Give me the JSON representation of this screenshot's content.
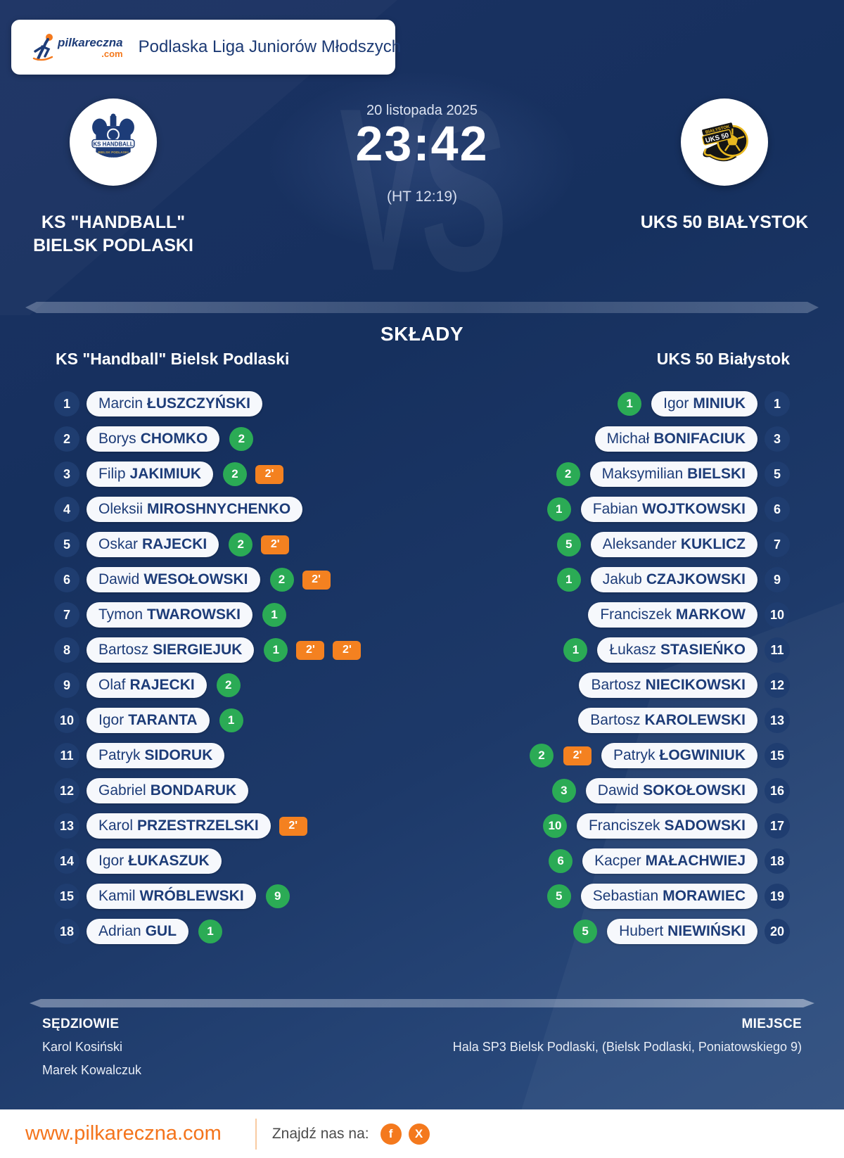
{
  "header": {
    "brand_name": "pilkareczna",
    "brand_tld": ".com",
    "league": "Podlaska Liga Juniorów Młodszych"
  },
  "match": {
    "date": "20 listopada 2025",
    "score": "23:42",
    "halftime": "(HT 12:19)",
    "vs_watermark": "VS"
  },
  "teams": {
    "home": {
      "name_line1": "KS \"HANDBALL\"",
      "name_line2": "BIELSK PODLASKI",
      "lineup_header": "KS \"Handball\" Bielsk Podlaski",
      "logo_text": "KS HANDBALL"
    },
    "away": {
      "name_line1": "UKS 50 BIAŁYSTOK",
      "lineup_header": "UKS 50 Białystok",
      "logo_text": "UKS 50"
    }
  },
  "lineups_title": "SKŁADY",
  "badges": {
    "suspension_label": "2'"
  },
  "players": {
    "home": [
      {
        "number": "1",
        "first": "Marcin",
        "last": "ŁUSZCZYŃSKI",
        "goals": null,
        "suspensions": 0
      },
      {
        "number": "2",
        "first": "Borys",
        "last": "CHOMKO",
        "goals": 2,
        "suspensions": 0
      },
      {
        "number": "3",
        "first": "Filip",
        "last": "JAKIMIUK",
        "goals": 2,
        "suspensions": 1
      },
      {
        "number": "4",
        "first": "Oleksii",
        "last": "MIROSHNYCHENKO",
        "goals": null,
        "suspensions": 0
      },
      {
        "number": "5",
        "first": "Oskar",
        "last": "RAJECKI",
        "goals": 2,
        "suspensions": 1
      },
      {
        "number": "6",
        "first": "Dawid",
        "last": "WESOŁOWSKI",
        "goals": 2,
        "suspensions": 1
      },
      {
        "number": "7",
        "first": "Tymon",
        "last": "TWAROWSKI",
        "goals": 1,
        "suspensions": 0
      },
      {
        "number": "8",
        "first": "Bartosz",
        "last": "SIERGIEJUK",
        "goals": 1,
        "suspensions": 2
      },
      {
        "number": "9",
        "first": "Olaf",
        "last": "RAJECKI",
        "goals": 2,
        "suspensions": 0
      },
      {
        "number": "10",
        "first": "Igor",
        "last": "TARANTA",
        "goals": 1,
        "suspensions": 0
      },
      {
        "number": "11",
        "first": "Patryk",
        "last": "SIDORUK",
        "goals": null,
        "suspensions": 0
      },
      {
        "number": "12",
        "first": "Gabriel",
        "last": "BONDARUK",
        "goals": null,
        "suspensions": 0
      },
      {
        "number": "13",
        "first": "Karol",
        "last": "PRZESTRZELSKI",
        "goals": null,
        "suspensions": 1
      },
      {
        "number": "14",
        "first": "Igor",
        "last": "ŁUKASZUK",
        "goals": null,
        "suspensions": 0
      },
      {
        "number": "15",
        "first": "Kamil",
        "last": "WRÓBLEWSKI",
        "goals": 9,
        "suspensions": 0
      },
      {
        "number": "18",
        "first": "Adrian",
        "last": "GUL",
        "goals": 1,
        "suspensions": 0
      }
    ],
    "away": [
      {
        "number": "1",
        "first": "Igor",
        "last": "MINIUK",
        "goals": 1,
        "suspensions": 0
      },
      {
        "number": "3",
        "first": "Michał",
        "last": "BONIFACIUK",
        "goals": null,
        "suspensions": 0
      },
      {
        "number": "5",
        "first": "Maksymilian",
        "last": "BIELSKI",
        "goals": 2,
        "suspensions": 0
      },
      {
        "number": "6",
        "first": "Fabian",
        "last": "WOJTKOWSKI",
        "goals": 1,
        "suspensions": 0
      },
      {
        "number": "7",
        "first": "Aleksander",
        "last": "KUKLICZ",
        "goals": 5,
        "suspensions": 0
      },
      {
        "number": "9",
        "first": "Jakub",
        "last": "CZAJKOWSKI",
        "goals": 1,
        "suspensions": 0
      },
      {
        "number": "10",
        "first": "Franciszek",
        "last": "MARKOW",
        "goals": null,
        "suspensions": 0
      },
      {
        "number": "11",
        "first": "Łukasz",
        "last": "STASIEŃKO",
        "goals": 1,
        "suspensions": 0
      },
      {
        "number": "12",
        "first": "Bartosz",
        "last": "NIECIKOWSKI",
        "goals": null,
        "suspensions": 0
      },
      {
        "number": "13",
        "first": "Bartosz",
        "last": "KAROLEWSKI",
        "goals": null,
        "suspensions": 0
      },
      {
        "number": "15",
        "first": "Patryk",
        "last": "ŁOGWINIUK",
        "goals": 2,
        "suspensions": 1
      },
      {
        "number": "16",
        "first": "Dawid",
        "last": "SOKOŁOWSKI",
        "goals": 3,
        "suspensions": 0
      },
      {
        "number": "17",
        "first": "Franciszek",
        "last": "SADOWSKI",
        "goals": 10,
        "suspensions": 0
      },
      {
        "number": "18",
        "first": "Kacper",
        "last": "MAŁACHWIEJ",
        "goals": 6,
        "suspensions": 0
      },
      {
        "number": "19",
        "first": "Sebastian",
        "last": "MORAWIEC",
        "goals": 5,
        "suspensions": 0
      },
      {
        "number": "20",
        "first": "Hubert",
        "last": "NIEWIŃSKI",
        "goals": 5,
        "suspensions": 0
      }
    ]
  },
  "info": {
    "referees_label": "SĘDZIOWIE",
    "referees": [
      "Karol Kosiński",
      "Marek Kowalczuk"
    ],
    "venue_label": "MIEJSCE",
    "venue": "Hala SP3 Bielsk Podlaski, (Bielsk Podlaski, Poniatowskiego 9)"
  },
  "footer": {
    "website": "www.pilkareczna.com",
    "find_us": "Znajdź nas na:",
    "social": [
      {
        "name": "facebook",
        "glyph": "f"
      },
      {
        "name": "x",
        "glyph": "X"
      }
    ]
  },
  "colors": {
    "accent_orange": "#f4791d",
    "goal_green": "#2bab55",
    "suspension_orange": "#f48120",
    "navy_text": "#1d3c78",
    "background_navy": "#16305e"
  }
}
